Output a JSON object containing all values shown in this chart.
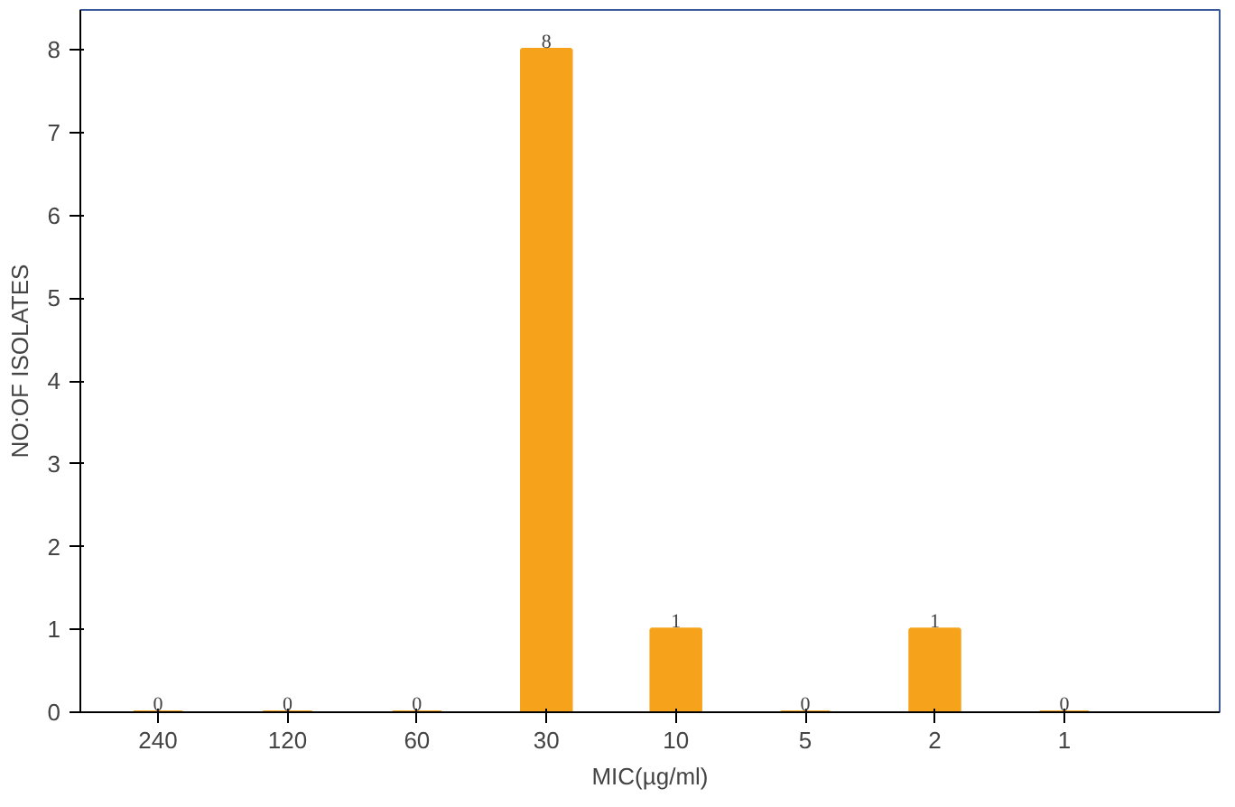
{
  "chart_data": {
    "type": "bar",
    "xlabel": "MIC(µg/ml)",
    "ylabel": "NO:OF ISOLATES",
    "categories": [
      "240",
      "120",
      "60",
      "30",
      "10",
      "5",
      "2",
      "1"
    ],
    "values": [
      0,
      0,
      0,
      8,
      1,
      0,
      1,
      0
    ],
    "color": "#f7a21b",
    "ylim": [
      0,
      8
    ],
    "yticks": [
      0,
      1,
      2,
      3,
      4,
      5,
      6,
      7,
      8
    ],
    "grid": false,
    "data_labels": true
  }
}
